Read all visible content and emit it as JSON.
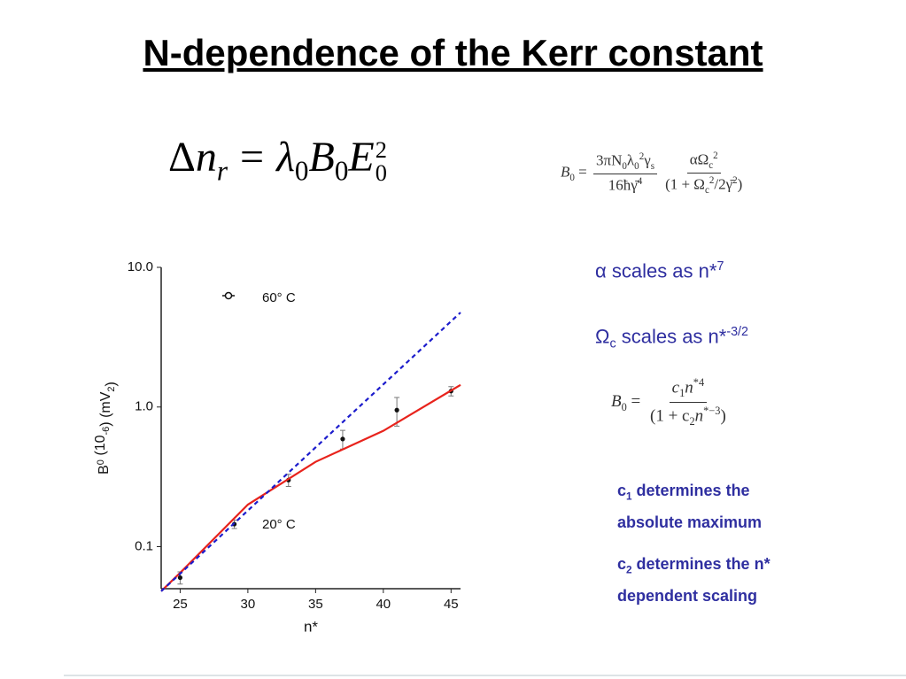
{
  "title": "N-dependence of the Kerr constant",
  "equation": [
    "Δ",
    "n",
    "r",
    "=",
    "λ",
    "0",
    "B",
    "0",
    "E",
    "0",
    "2"
  ],
  "formula_b0": {
    "lhs": [
      "B",
      "0",
      "="
    ],
    "fraction1": {
      "numerator": [
        "3πN",
        "0",
        "λ",
        "0",
        "2",
        "γ",
        "s"
      ],
      "denominator": [
        "16ħγ̄",
        "4"
      ]
    },
    "fraction2": {
      "numerator": [
        "αΩ",
        "c",
        "2"
      ],
      "denominator": [
        "(1 + Ω",
        "c",
        "2",
        "/2γ̄",
        "2",
        ")"
      ]
    }
  },
  "scaling": [
    [
      "α scales as n*",
      "7"
    ],
    [
      "Ω",
      "c",
      " scales as n*",
      "-3/2"
    ]
  ],
  "formula_fit": {
    "lhs": [
      "B",
      "0",
      "="
    ],
    "numerator": [
      "c",
      "1",
      "n",
      "*4"
    ],
    "denominator": [
      "(1 + c",
      "2",
      "n",
      "*−3",
      ")"
    ]
  },
  "notes": [
    [
      "c",
      "1",
      " determines the absolute maximum"
    ],
    [
      "c",
      "2",
      " determines the n* dependent scaling"
    ]
  ],
  "chart_data": {
    "type": "scatter",
    "x_label": "n*",
    "y_label": [
      "B",
      "0",
      " (10",
      "-6",
      ") (mV",
      "2",
      ")"
    ],
    "annotations": [
      "60° C",
      "20° C"
    ],
    "xlim": [
      23.6,
      45.7
    ],
    "xticks": [
      25,
      30,
      35,
      40,
      45
    ],
    "ylim": [
      0.05,
      10
    ],
    "yscale": "log",
    "yticks": [
      {
        "value": 10,
        "label": "10.0"
      },
      {
        "value": 1,
        "label": "1.0"
      },
      0.1
    ],
    "grid": false,
    "series": [
      {
        "mode": "markers",
        "color": "#111111",
        "x": [
          25,
          29,
          33,
          37,
          41,
          45
        ],
        "values": [
          0.06,
          0.145,
          0.3,
          0.59,
          0.95,
          1.3
        ],
        "errors": [
          0.006,
          0.01,
          0.03,
          0.09,
          0.22,
          0.1
        ]
      },
      {
        "mode": "line",
        "style": "solid",
        "color": "#e8231c",
        "x": [
          23.6,
          25,
          30,
          35,
          40,
          45.7
        ],
        "values": [
          0.048,
          0.065,
          0.2,
          0.405,
          0.675,
          1.44
        ]
      },
      {
        "mode": "line",
        "style": "dashed",
        "color": "#1c1ccc",
        "x": [
          23.6,
          25,
          35,
          45.7
        ],
        "values": [
          0.048,
          0.064,
          0.514,
          4.75
        ]
      }
    ]
  }
}
